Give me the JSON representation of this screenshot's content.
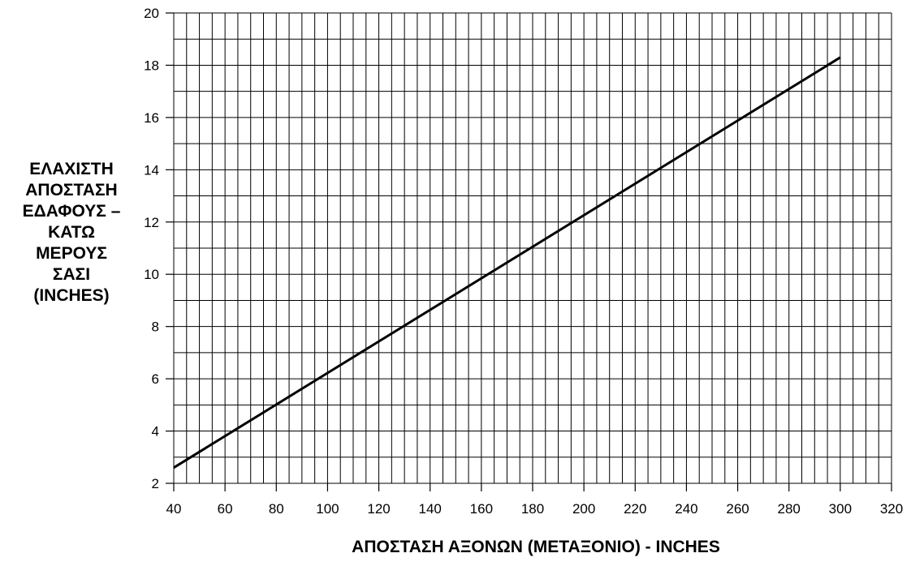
{
  "chart_data": {
    "type": "line",
    "xlabel": "ΑΠΟΣΤΑΣΗ ΑΞΟΝΩΝ (ΜΕΤΑΞΟΝΙΟ) - INCHES",
    "ylabel_lines": [
      "ΕΛΑΧΙΣΤΗ",
      "ΑΠΟΣΤΑΣΗ",
      "ΕΔΑΦΟΥΣ –",
      "ΚΑΤΩ",
      "ΜΕΡΟΥΣ",
      "ΣΑΣΙ",
      "(INCHES)"
    ],
    "xlim": [
      40,
      320
    ],
    "ylim": [
      2,
      20
    ],
    "x_ticks": [
      40,
      60,
      80,
      100,
      120,
      140,
      160,
      180,
      200,
      220,
      240,
      260,
      280,
      300,
      320
    ],
    "y_ticks": [
      2,
      4,
      6,
      8,
      10,
      12,
      14,
      16,
      18,
      20
    ],
    "grid": true,
    "x_minor_step": 5,
    "y_minor_step": 1,
    "series": [
      {
        "points": [
          [
            40,
            2.6
          ],
          [
            300,
            18.3
          ]
        ]
      }
    ]
  }
}
